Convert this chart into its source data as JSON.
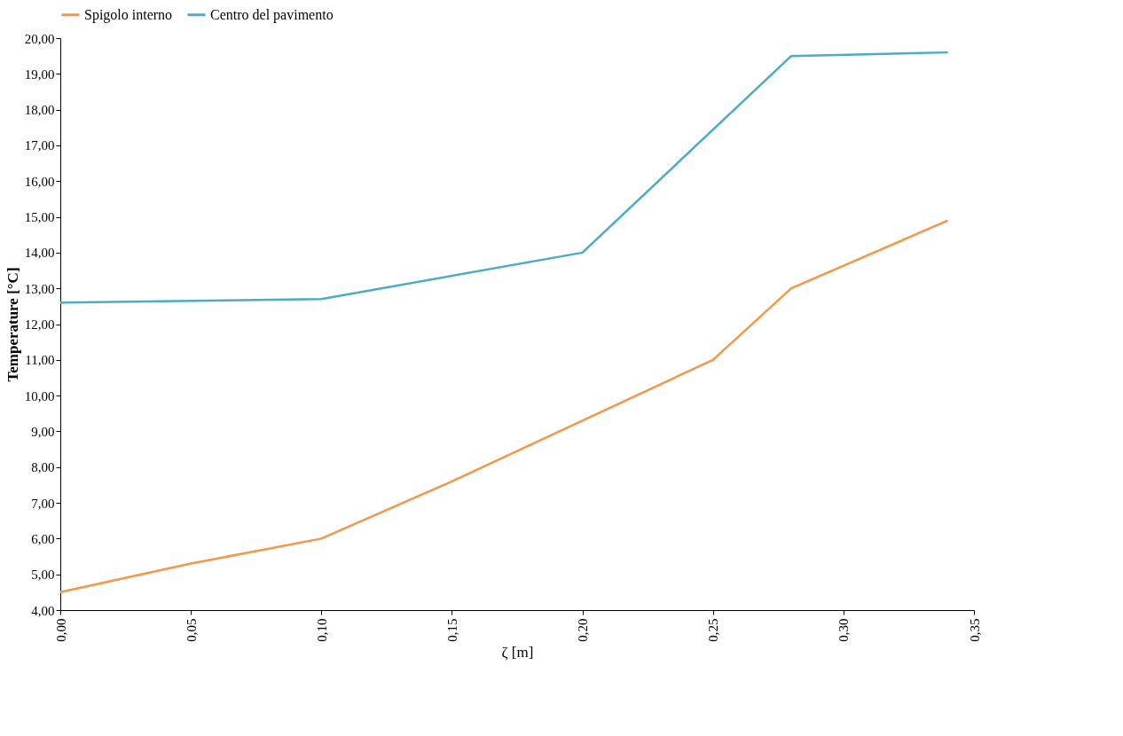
{
  "chart_data": {
    "type": "line",
    "xlabel": "ζ [m]",
    "ylabel": "Temperature [°C]",
    "legend": "top",
    "grid": false,
    "line_style": "solid",
    "marker": "none",
    "xlim": [
      0,
      0.35
    ],
    "ylim": [
      4,
      20
    ],
    "xticks": [
      {
        "value": 0,
        "label": "0,00"
      },
      {
        "value": 0.05,
        "label": "0,05"
      },
      {
        "value": 0.1,
        "label": "0,10"
      },
      {
        "value": 0.15,
        "label": "0,15"
      },
      {
        "value": 0.2,
        "label": "0,20"
      },
      {
        "value": 0.25,
        "label": "0,25"
      },
      {
        "value": 0.3,
        "label": "0,30"
      },
      {
        "value": 0.35,
        "label": "0,35"
      }
    ],
    "yticks": [
      {
        "value": 4,
        "label": "4,00"
      },
      {
        "value": 5,
        "label": "5,00"
      },
      {
        "value": 6,
        "label": "6,00"
      },
      {
        "value": 7,
        "label": "7,00"
      },
      {
        "value": 8,
        "label": "8,00"
      },
      {
        "value": 9,
        "label": "9,00"
      },
      {
        "value": 10,
        "label": "10,00"
      },
      {
        "value": 11,
        "label": "11,00"
      },
      {
        "value": 12,
        "label": "12,00"
      },
      {
        "value": 13,
        "label": "13,00"
      },
      {
        "value": 14,
        "label": "14,00"
      },
      {
        "value": 15,
        "label": "15,00"
      },
      {
        "value": 16,
        "label": "16,00"
      },
      {
        "value": 17,
        "label": "17,00"
      },
      {
        "value": 18,
        "label": "18,00"
      },
      {
        "value": 19,
        "label": "19,00"
      },
      {
        "value": 20,
        "label": "20,00"
      }
    ],
    "series": [
      {
        "name": "Spigolo interno",
        "color": "#f79646",
        "x": [
          0,
          0.05,
          0.1,
          0.15,
          0.2,
          0.25,
          0.28,
          0.34
        ],
        "values": [
          4.5,
          5.3,
          6.0,
          7.6,
          9.3,
          11.0,
          13.0,
          14.9
        ]
      },
      {
        "name": "Centro del pavimento",
        "color": "#4bacc6",
        "x": [
          0,
          0.1,
          0.2,
          0.28,
          0.34
        ],
        "values": [
          12.6,
          12.7,
          14.0,
          19.5,
          19.6
        ]
      }
    ]
  }
}
